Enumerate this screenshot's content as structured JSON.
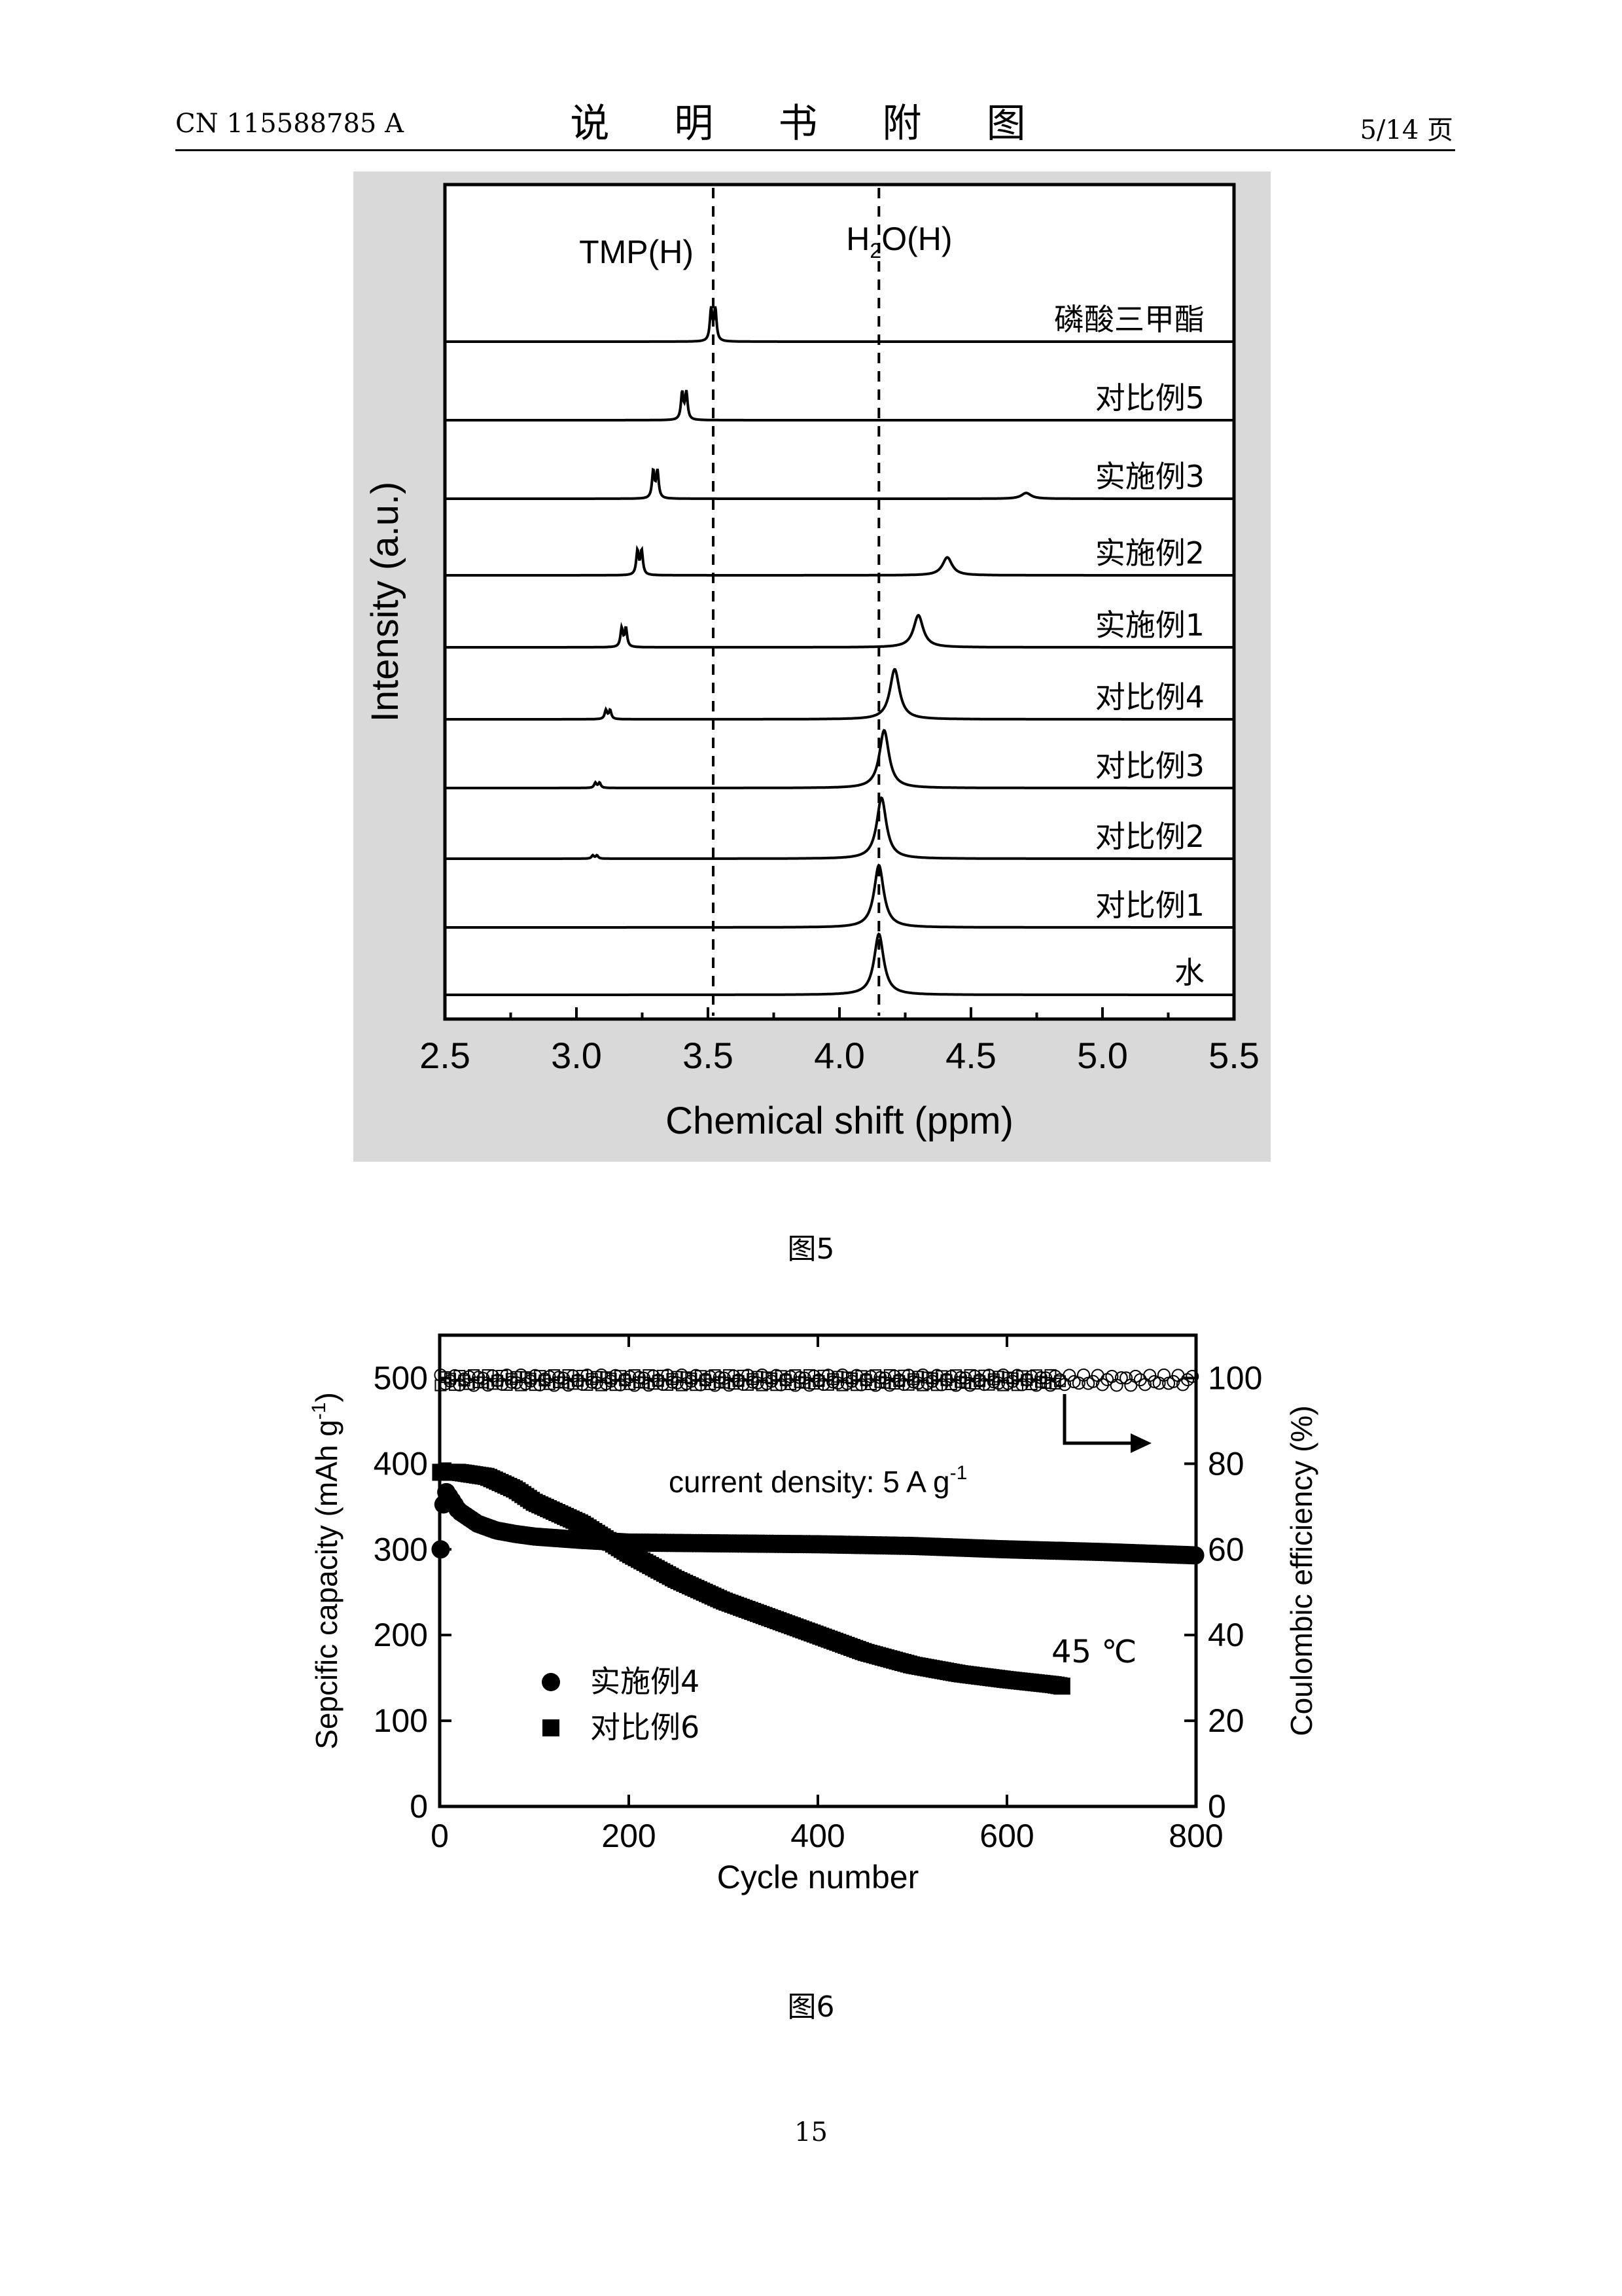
{
  "header": {
    "doc_number": "CN 115588785 A",
    "title": "说 明 书 附 图",
    "page_ref": "5/14 页"
  },
  "figures": [
    {
      "caption": "图5"
    },
    {
      "caption": "图6"
    }
  ],
  "page_number": "15",
  "chart_data": [
    {
      "type": "line",
      "xlabel": "Chemical shift (ppm)",
      "ylabel": "Intensity (a.u.)",
      "xlim": [
        2.5,
        5.5
      ],
      "x_ticks": [
        "2.5",
        "3.0",
        "3.5",
        "4.0",
        "4.5",
        "5.0",
        "5.5"
      ],
      "reference_lines": [
        {
          "label": "TMP(H)",
          "x": 3.52
        },
        {
          "label": "H2O(H)",
          "label_main": "H",
          "label_sub": "2",
          "label_rest": "O(H)",
          "x": 4.15
        }
      ],
      "series": [
        {
          "name": "磷酸三甲酯",
          "tmp_peak": 3.52,
          "tmp_height": 1.0,
          "water_peak": null,
          "water_height": 0
        },
        {
          "name": "对比例5",
          "tmp_peak": 3.41,
          "tmp_height": 0.85,
          "water_peak": null,
          "water_height": 0
        },
        {
          "name": "实施例3",
          "tmp_peak": 3.3,
          "tmp_height": 0.85,
          "water_peak": 4.71,
          "water_height": 0.09
        },
        {
          "name": "实施例2",
          "tmp_peak": 3.24,
          "tmp_height": 0.75,
          "water_peak": 4.41,
          "water_height": 0.28
        },
        {
          "name": "实施例1",
          "tmp_peak": 3.18,
          "tmp_height": 0.58,
          "water_peak": 4.3,
          "water_height": 0.5
        },
        {
          "name": "对比例4",
          "tmp_peak": 3.12,
          "tmp_height": 0.28,
          "water_peak": 4.21,
          "water_height": 0.78
        },
        {
          "name": "对比例3",
          "tmp_peak": 3.08,
          "tmp_height": 0.16,
          "water_peak": 4.17,
          "water_height": 0.9
        },
        {
          "name": "对比例2",
          "tmp_peak": 3.07,
          "tmp_height": 0.1,
          "water_peak": 4.16,
          "water_height": 0.95
        },
        {
          "name": "对比例1",
          "tmp_peak": null,
          "tmp_height": 0,
          "water_peak": 4.15,
          "water_height": 0.97
        },
        {
          "name": "水",
          "tmp_peak": null,
          "tmp_height": 0,
          "water_peak": 4.15,
          "water_height": 0.95
        }
      ]
    },
    {
      "type": "scatter",
      "xlabel": "Cycle number",
      "ylabel": "Sepcific capacity (mAh g-1)",
      "ylabel_main": "Sepcific capacity (mAh g",
      "ylabel_sup": "-1",
      "ylabel_tail": ")",
      "ylabel_right": "Coulombic efficiency (%)",
      "xlim": [
        0,
        800
      ],
      "ylim": [
        0,
        550
      ],
      "ylim_right": [
        0,
        110
      ],
      "x_ticks": [
        "0",
        "200",
        "400",
        "600",
        "800"
      ],
      "y_ticks": [
        "0",
        "100",
        "200",
        "300",
        "400",
        "500"
      ],
      "y_ticks_right": [
        "0",
        "20",
        "40",
        "60",
        "80",
        "100"
      ],
      "annotations": {
        "current_density_main": "current density: 5 A g",
        "current_density_sup": "-1",
        "temperature": "45 ℃"
      },
      "series": [
        {
          "name": "实施例4",
          "marker": "circle",
          "capacity_points": [
            [
              1,
              300
            ],
            [
              5,
              370
            ],
            [
              10,
              362
            ],
            [
              20,
              345
            ],
            [
              40,
              330
            ],
            [
              60,
              322
            ],
            [
              80,
              318
            ],
            [
              100,
              315
            ],
            [
              150,
              311
            ],
            [
              200,
              308
            ],
            [
              300,
              307
            ],
            [
              400,
              306
            ],
            [
              500,
              304
            ],
            [
              600,
              300
            ],
            [
              700,
              297
            ],
            [
              800,
              293
            ]
          ],
          "efficiency_percent": 99.5,
          "cycles": 800
        },
        {
          "name": "对比例6",
          "marker": "square",
          "capacity_points": [
            [
              1,
              390
            ],
            [
              20,
              390
            ],
            [
              50,
              385
            ],
            [
              80,
              370
            ],
            [
              100,
              355
            ],
            [
              150,
              330
            ],
            [
              200,
              295
            ],
            [
              250,
              265
            ],
            [
              300,
              240
            ],
            [
              350,
              220
            ],
            [
              400,
              200
            ],
            [
              450,
              180
            ],
            [
              500,
              165
            ],
            [
              550,
              155
            ],
            [
              600,
              148
            ],
            [
              650,
              142
            ],
            [
              660,
              140
            ]
          ],
          "efficiency_percent": 99.5,
          "cycles": 660
        }
      ]
    }
  ]
}
